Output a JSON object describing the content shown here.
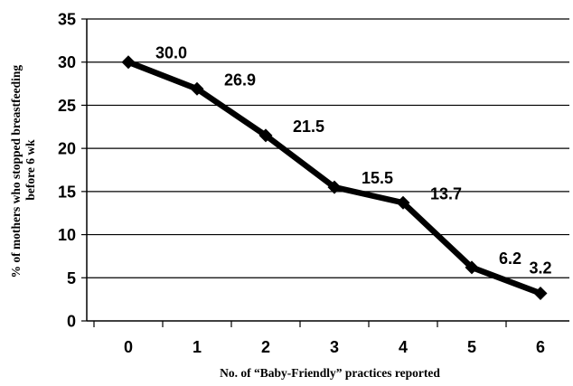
{
  "chart_data": {
    "type": "line",
    "x": [
      0,
      1,
      2,
      3,
      4,
      5,
      6
    ],
    "categories": [
      "0",
      "1",
      "2",
      "3",
      "4",
      "5",
      "6"
    ],
    "series": [
      {
        "values": [
          30.0,
          26.9,
          21.5,
          15.5,
          13.7,
          6.2,
          3.2
        ]
      }
    ],
    "data_labels": [
      "30.0",
      "26.9",
      "21.5",
      "15.5",
      "13.7",
      "6.2",
      "3.2"
    ],
    "xlabel": "No. of “Baby-Friendly” practices reported",
    "ylabel_lines": [
      "% of mothers who stopped breastfeeding",
      "before 6 wk"
    ],
    "ylim": [
      0,
      35
    ],
    "yticks": [
      0,
      5,
      10,
      15,
      20,
      25,
      30,
      35
    ],
    "grid": true,
    "legend": "none",
    "line_color": "#000000",
    "marker": "diamond"
  }
}
